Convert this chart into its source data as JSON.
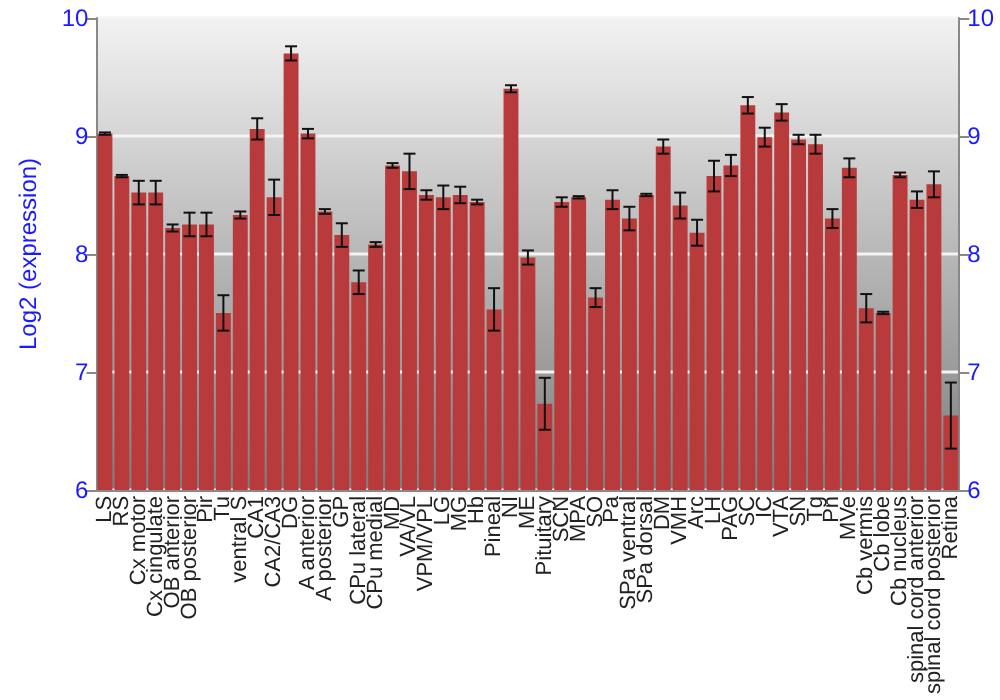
{
  "chart_data": {
    "type": "bar",
    "ylabel": "Log2 (expression)",
    "categories": [
      "LS",
      "RS",
      "Cx motor",
      "Cx cingulate",
      "OB anterior",
      "OB posterior",
      "Pir",
      "Tu",
      "ventral S",
      "CA1",
      "CA2/CA3",
      "DG",
      "A anterior",
      "A posterior",
      "GP",
      "CPu lateral",
      "CPu medial",
      "MD",
      "VA/VL",
      "VPM/VPL",
      "LG",
      "MG",
      "Hb",
      "Pineal",
      "NI",
      "ME",
      "Pituitary",
      "SCN",
      "MPA",
      "SO",
      "Pa",
      "SPa ventral",
      "SPa dorsal",
      "DM",
      "VMH",
      "Arc",
      "LH",
      "PAG",
      "SC",
      "IC",
      "VTA",
      "SN",
      "Tg",
      "Pn",
      "MVe",
      "Cb vermis",
      "Cb lobe",
      "Cb nucleus",
      "spinal cord anterior",
      "spinal cord posterior",
      "Retina"
    ],
    "values": [
      9.02,
      8.66,
      8.52,
      8.52,
      8.22,
      8.25,
      8.25,
      7.5,
      8.33,
      9.06,
      8.48,
      9.7,
      9.02,
      8.36,
      8.16,
      7.76,
      8.08,
      8.75,
      8.7,
      8.5,
      8.48,
      8.5,
      8.44,
      7.53,
      9.4,
      7.97,
      6.73,
      8.44,
      8.48,
      7.63,
      8.46,
      8.3,
      8.5,
      8.91,
      8.41,
      8.18,
      8.66,
      8.75,
      9.26,
      8.99,
      9.2,
      8.97,
      8.93,
      8.3,
      8.73,
      7.54,
      7.5,
      8.67,
      8.46,
      8.59,
      6.63
    ],
    "errors": [
      0.01,
      0.01,
      0.1,
      0.1,
      0.03,
      0.1,
      0.1,
      0.15,
      0.03,
      0.09,
      0.15,
      0.06,
      0.04,
      0.02,
      0.1,
      0.1,
      0.02,
      0.02,
      0.15,
      0.04,
      0.1,
      0.07,
      0.02,
      0.18,
      0.03,
      0.06,
      0.22,
      0.04,
      0.01,
      0.08,
      0.08,
      0.1,
      0.01,
      0.06,
      0.11,
      0.11,
      0.13,
      0.09,
      0.07,
      0.08,
      0.07,
      0.04,
      0.08,
      0.08,
      0.08,
      0.12,
      0.01,
      0.02,
      0.07,
      0.11,
      0.28
    ],
    "color": "#b83a3a",
    "ylim": [
      6,
      10
    ],
    "yticks": [
      6,
      7,
      8,
      9,
      10
    ],
    "y2lim": [
      6,
      10
    ],
    "y2ticks": [
      6,
      7,
      8,
      9,
      10
    ],
    "grid": "y"
  }
}
